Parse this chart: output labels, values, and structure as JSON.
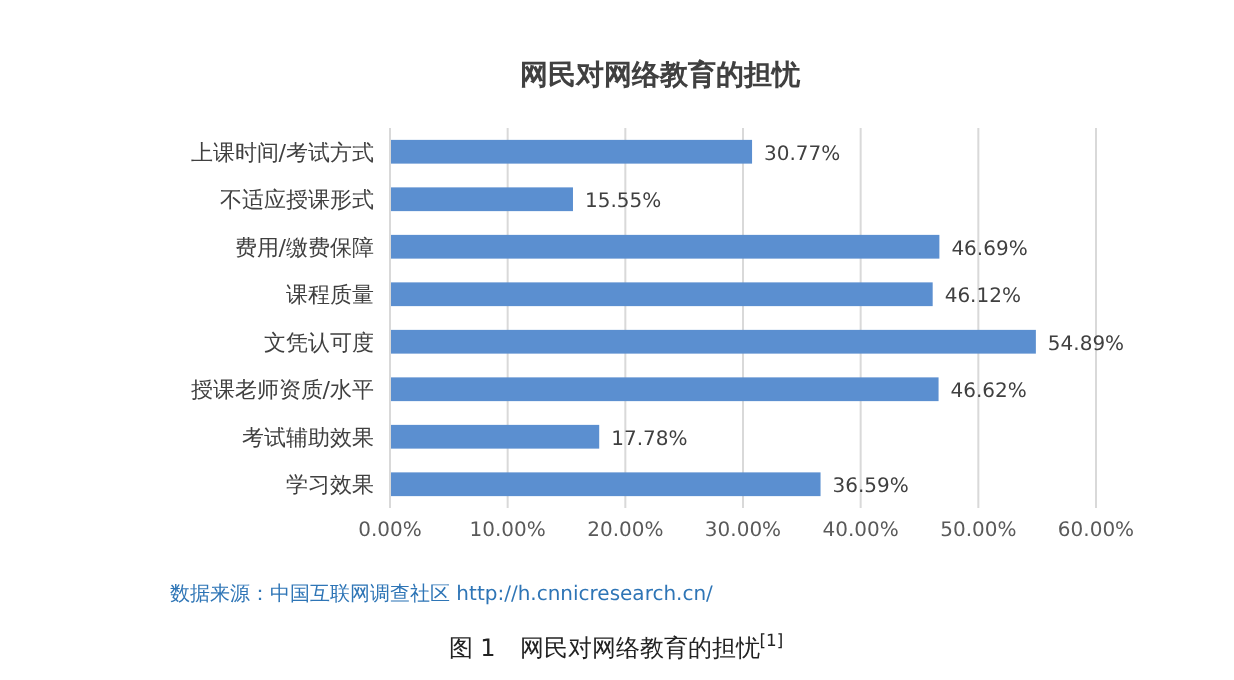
{
  "chart_data": {
    "type": "bar",
    "orientation": "horizontal",
    "title": "网民对网络教育的担忧",
    "categories": [
      "上课时间/考试方式",
      "不适应授课形式",
      "费用/缴费保障",
      "课程质量",
      "文凭认可度",
      "授课老师资质/水平",
      "考试辅助效果",
      "学习效果"
    ],
    "values": [
      30.77,
      15.55,
      46.69,
      46.12,
      54.89,
      46.62,
      17.78,
      36.59
    ],
    "value_labels": [
      "30.77%",
      "15.55%",
      "46.69%",
      "46.12%",
      "54.89%",
      "46.62%",
      "17.78%",
      "36.59%"
    ],
    "color": "#5b8fd0",
    "xlim": [
      0,
      60
    ],
    "xticks": [
      {
        "value": 0,
        "label": "0.00%"
      },
      {
        "value": 10,
        "label": "10.00%"
      },
      {
        "value": 20,
        "label": "20.00%"
      },
      {
        "value": 30,
        "label": "30.00%"
      },
      {
        "value": 40,
        "label": "40.00%"
      },
      {
        "value": 50,
        "label": "50.00%"
      },
      {
        "value": 60,
        "label": "60.00%"
      }
    ],
    "grid": "x",
    "annotations": [
      "数据来源：中国互联网调查社区 http://h.cnnicresearch.cn/",
      "图 1　网民对网络教育的担忧$^{[1]}$"
    ]
  }
}
